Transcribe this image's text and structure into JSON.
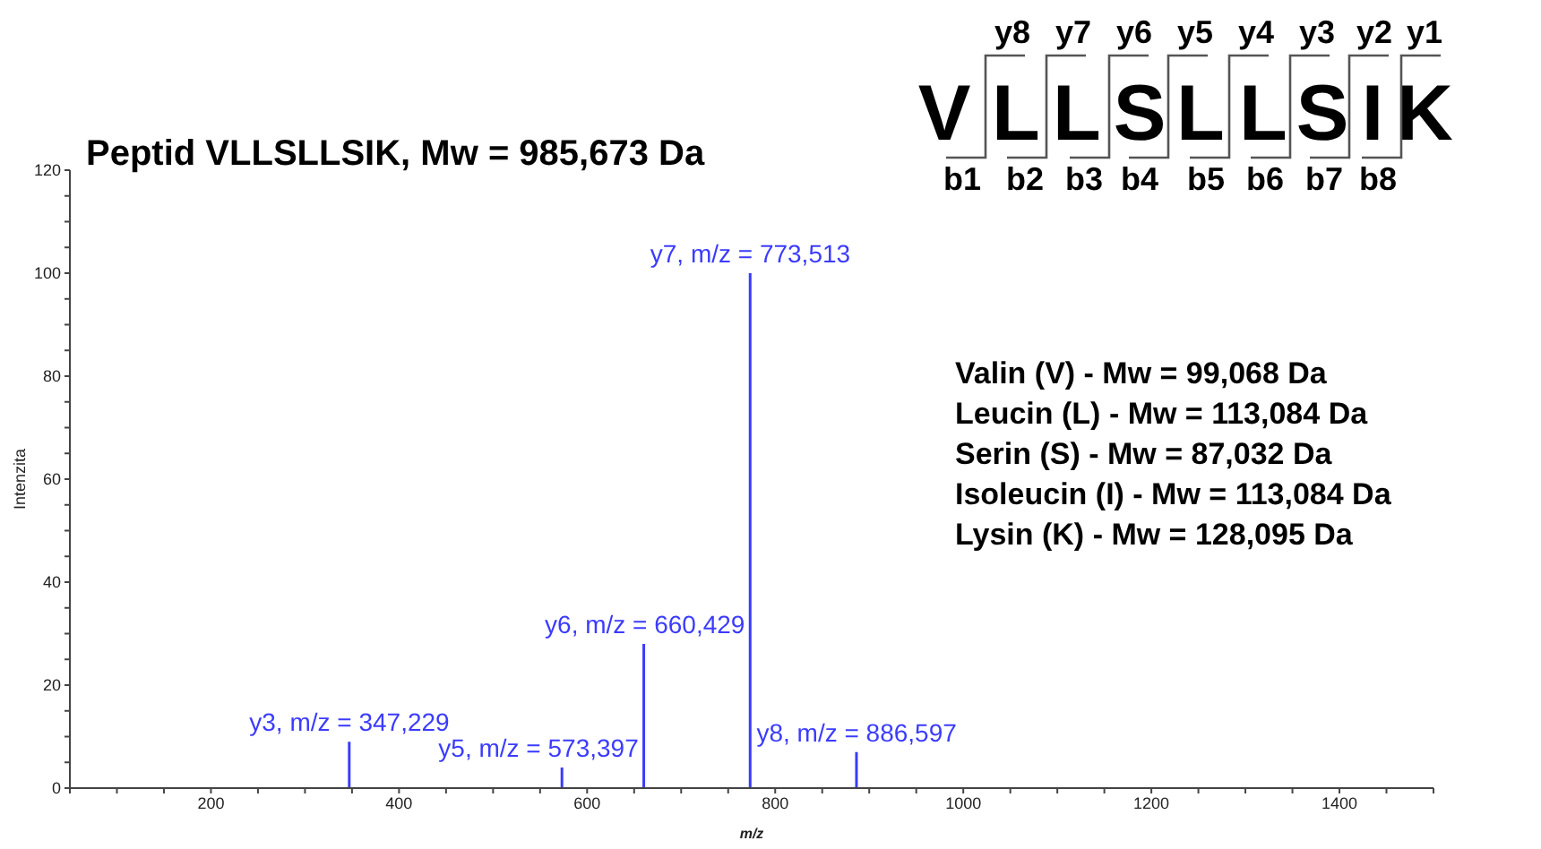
{
  "chart_data": {
    "type": "bar",
    "title": "Peptid VLLSLLSIK, Mw = 985,673 Da",
    "xlabel": "m/z",
    "ylabel": "Intenzita",
    "x": [
      347.229,
      573.397,
      660.429,
      773.513,
      886.597
    ],
    "values": [
      9,
      4,
      28,
      100,
      7
    ],
    "color": "#3b3bff",
    "xlim": [
      50,
      1500
    ],
    "xticks": [
      {
        "value": 50,
        "label": null
      },
      {
        "value": 100,
        "label": null
      },
      {
        "value": 150,
        "label": null
      },
      200,
      {
        "value": 250,
        "label": null
      },
      {
        "value": 300,
        "label": null
      },
      {
        "value": 350,
        "label": null
      },
      400,
      {
        "value": 450,
        "label": null
      },
      {
        "value": 500,
        "label": null
      },
      {
        "value": 550,
        "label": null
      },
      600,
      {
        "value": 650,
        "label": null
      },
      {
        "value": 700,
        "label": null
      },
      {
        "value": 750,
        "label": null
      },
      800,
      {
        "value": 850,
        "label": null
      },
      {
        "value": 900,
        "label": null
      },
      {
        "value": 950,
        "label": null
      },
      1000,
      {
        "value": 1050,
        "label": null
      },
      {
        "value": 1100,
        "label": null
      },
      {
        "value": 1150,
        "label": null
      },
      1200,
      {
        "value": 1250,
        "label": null
      },
      {
        "value": 1300,
        "label": null
      },
      {
        "value": 1350,
        "label": null
      },
      1400,
      {
        "value": 1450,
        "label": null
      },
      {
        "value": 1500,
        "label": null
      }
    ],
    "ylim": [
      0,
      120
    ],
    "yticks": [
      0,
      {
        "value": 5,
        "label": null
      },
      {
        "value": 10,
        "label": null
      },
      {
        "value": 15,
        "label": null
      },
      20,
      {
        "value": 25,
        "label": null
      },
      {
        "value": 30,
        "label": null
      },
      {
        "value": 35,
        "label": null
      },
      40,
      {
        "value": 45,
        "label": null
      },
      {
        "value": 50,
        "label": null
      },
      {
        "value": 55,
        "label": null
      },
      60,
      {
        "value": 65,
        "label": null
      },
      {
        "value": 70,
        "label": null
      },
      {
        "value": 75,
        "label": null
      },
      80,
      {
        "value": 85,
        "label": null
      },
      {
        "value": 90,
        "label": null
      },
      {
        "value": 95,
        "label": null
      },
      100,
      {
        "value": 105,
        "label": null
      },
      {
        "value": 110,
        "label": null
      },
      {
        "value": 115,
        "label": null
      },
      120
    ],
    "grid": false,
    "legend": false,
    "annotations": [
      {
        "text": "y3, m/z = 347,229",
        "x": 347.229,
        "y": 9
      },
      {
        "text": "y5, m/z = 573,397",
        "x": 573.397,
        "y": 4
      },
      {
        "text": "y6, m/z = 660,429",
        "x": 660.429,
        "y": 28
      },
      {
        "text": "y7, m/z = 773,513",
        "x": 773.513,
        "y": 100
      },
      {
        "text": "y8, m/z = 886,597",
        "x": 886.597,
        "y": 7
      },
      "y8",
      "y7",
      "y6",
      "y5",
      "y4",
      "y3",
      "y2",
      "y1",
      "V",
      "L",
      "L",
      "S",
      "L",
      "L",
      "S",
      "I",
      "K",
      "b1",
      "b2",
      "b3",
      "b4",
      "b5",
      "b6",
      "b7",
      "b8",
      "Valin (V) - Mw = 99,068 Da",
      "Leucin (L) - Mw = 113,084 Da",
      "Serin (S) - Mw = 87,032 Da",
      "Isoleucin (I) - Mw = 113,084 Da",
      "Lysin (K) - Mw = 128,095 Da"
    ]
  }
}
